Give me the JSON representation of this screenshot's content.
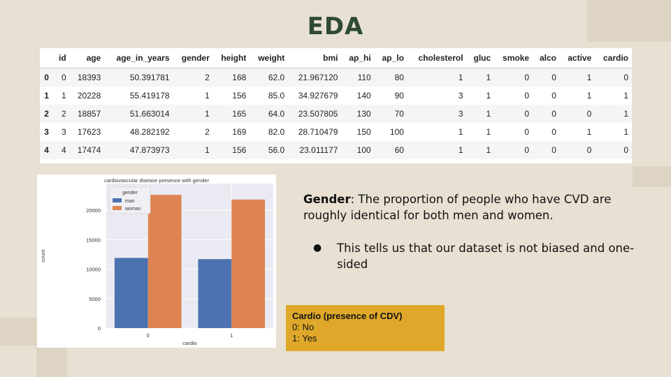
{
  "slide": {
    "title": "EDA",
    "body_lead": "Gender",
    "body_text": ": The proportion of people who have CVD are roughly identical for both men and women.",
    "bullet": "This tells us that our dataset is not biased and one-sided",
    "legend": {
      "header": "Cardio (presence of CDV)",
      "lines": [
        "0: No",
        "1: Yes"
      ]
    },
    "colors": {
      "title": "#2f4a33",
      "legend_bg": "#dfa82a",
      "background": "#e8e1d3"
    }
  },
  "dataframe": {
    "columns": [
      "",
      "id",
      "age",
      "age_in_years",
      "gender",
      "height",
      "weight",
      "bmi",
      "ap_hi",
      "ap_lo",
      "cholesterol",
      "gluc",
      "smoke",
      "alco",
      "active",
      "cardio"
    ],
    "rows": [
      [
        "0",
        "0",
        "18393",
        "50.391781",
        "2",
        "168",
        "62.0",
        "21.967120",
        "110",
        "80",
        "1",
        "1",
        "0",
        "0",
        "1",
        "0"
      ],
      [
        "1",
        "1",
        "20228",
        "55.419178",
        "1",
        "156",
        "85.0",
        "34.927679",
        "140",
        "90",
        "3",
        "1",
        "0",
        "0",
        "1",
        "1"
      ],
      [
        "2",
        "2",
        "18857",
        "51.663014",
        "1",
        "165",
        "64.0",
        "23.507805",
        "130",
        "70",
        "3",
        "1",
        "0",
        "0",
        "0",
        "1"
      ],
      [
        "3",
        "3",
        "17623",
        "48.282192",
        "2",
        "169",
        "82.0",
        "28.710479",
        "150",
        "100",
        "1",
        "1",
        "0",
        "0",
        "1",
        "1"
      ],
      [
        "4",
        "4",
        "17474",
        "47.873973",
        "1",
        "156",
        "56.0",
        "23.011177",
        "100",
        "60",
        "1",
        "1",
        "0",
        "0",
        "0",
        "0"
      ]
    ]
  },
  "chart_data": {
    "type": "bar",
    "title": "cardiovascular disease presence with gender",
    "xlabel": "cardio",
    "ylabel": "count",
    "categories": [
      "0",
      "1"
    ],
    "series": [
      {
        "name": "man",
        "values": [
          11900,
          11700
        ],
        "color": "#4c72b0"
      },
      {
        "name": "woman",
        "values": [
          22600,
          21800
        ],
        "color": "#dd8452"
      }
    ],
    "legend_title": "gender",
    "legend_position": "top-left",
    "ylim": [
      0,
      24500
    ],
    "yticks": [
      "0",
      "5000",
      "10000",
      "15000",
      "20000"
    ],
    "ytick_values": [
      0,
      5000,
      10000,
      15000,
      20000
    ],
    "grid": true,
    "plot_bg": "#eaeaf2"
  }
}
